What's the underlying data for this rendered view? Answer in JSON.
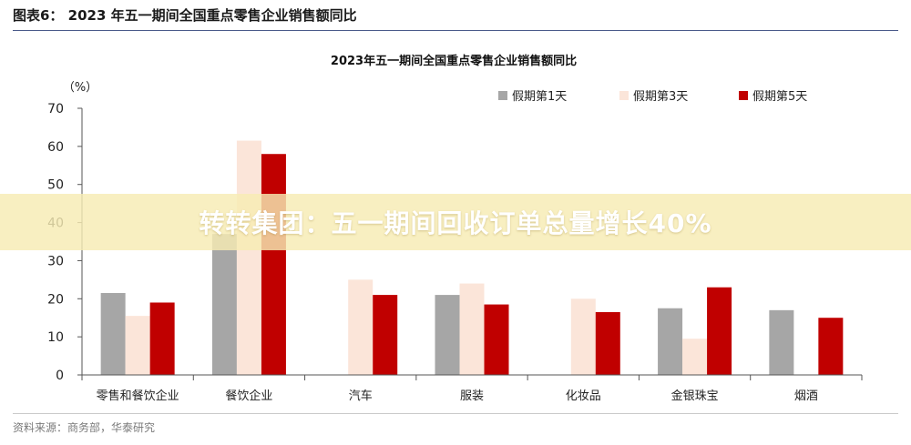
{
  "figure": {
    "caption": "图表6： 2023 年五一期间全国重点零售企业销售额同比",
    "source": "资料来源：商务部，华泰研究"
  },
  "banner": {
    "text": "转转集团：五一期间回收订单总量增长40%"
  },
  "chart_data": {
    "type": "bar",
    "title": "2023年五一期间全国重点零售企业销售额同比",
    "ylabel": "（%）",
    "xlabel": "",
    "ylim": [
      0,
      70
    ],
    "yticks": [
      0,
      10,
      20,
      30,
      40,
      50,
      60,
      70
    ],
    "grid": false,
    "legend_position": "top-right",
    "categories": [
      "零售和餐饮企业",
      "餐饮企业",
      "汽车",
      "服装",
      "化妆品",
      "金银珠宝",
      "烟酒"
    ],
    "series": [
      {
        "name": "假期第1天",
        "color": "#a6a6a6",
        "values": [
          21.5,
          37,
          null,
          21,
          null,
          17.5,
          17
        ]
      },
      {
        "name": "假期第3天",
        "color": "#fbe5d9",
        "values": [
          15.5,
          61.5,
          25,
          24,
          20,
          9.5,
          null
        ]
      },
      {
        "name": "假期第5天",
        "color": "#c00000",
        "values": [
          19,
          58,
          21,
          18.5,
          16.5,
          23,
          15
        ]
      }
    ]
  }
}
